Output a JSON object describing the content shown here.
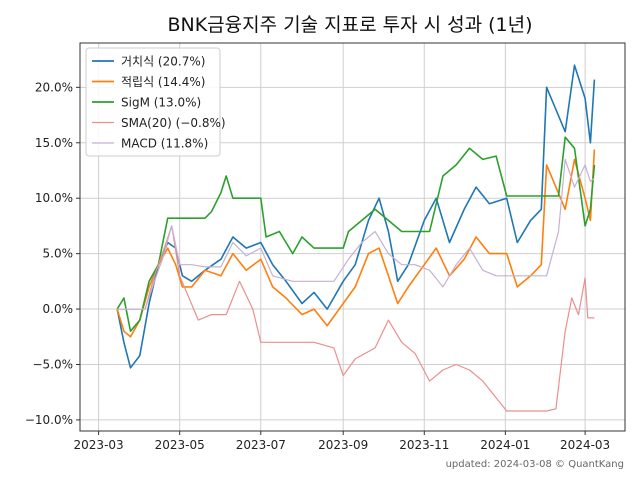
{
  "chart_data": {
    "type": "line",
    "title": "BNK금융지주 기술 지표로 투자 시 성과 (1년)",
    "xlabel": "",
    "ylabel": "",
    "x_ticks": [
      "2023-03",
      "2023-05",
      "2023-07",
      "2023-09",
      "2023-11",
      "2024-01",
      "2024-03"
    ],
    "x_range": [
      "2023-02-15",
      "2024-03-31"
    ],
    "y_ticks": [
      -10.0,
      -5.0,
      0.0,
      5.0,
      10.0,
      15.0,
      20.0
    ],
    "y_tick_labels": [
      "−10.0%",
      "−5.0%",
      "0.0%",
      "5.0%",
      "10.0%",
      "15.0%",
      "20.0%"
    ],
    "ylim": [
      -11,
      24
    ],
    "grid": true,
    "legend_position": "top-left",
    "series": [
      {
        "name": "거치식 (20.7%)",
        "color": "#1f77b4",
        "points": [
          [
            "2023-03-15",
            0.0
          ],
          [
            "2023-03-20",
            -3.0
          ],
          [
            "2023-03-25",
            -5.3
          ],
          [
            "2023-04-01",
            -4.2
          ],
          [
            "2023-04-08",
            0.5
          ],
          [
            "2023-04-15",
            4.0
          ],
          [
            "2023-04-22",
            6.0
          ],
          [
            "2023-04-28",
            5.5
          ],
          [
            "2023-05-03",
            3.0
          ],
          [
            "2023-05-10",
            2.5
          ],
          [
            "2023-05-20",
            3.5
          ],
          [
            "2023-06-01",
            4.5
          ],
          [
            "2023-06-10",
            6.5
          ],
          [
            "2023-06-20",
            5.5
          ],
          [
            "2023-07-01",
            6.0
          ],
          [
            "2023-07-10",
            4.0
          ],
          [
            "2023-07-20",
            2.5
          ],
          [
            "2023-08-01",
            0.5
          ],
          [
            "2023-08-10",
            1.5
          ],
          [
            "2023-08-20",
            0.0
          ],
          [
            "2023-09-01",
            2.5
          ],
          [
            "2023-09-10",
            4.0
          ],
          [
            "2023-09-20",
            8.0
          ],
          [
            "2023-09-28",
            10.0
          ],
          [
            "2023-10-05",
            7.0
          ],
          [
            "2023-10-12",
            2.5
          ],
          [
            "2023-10-20",
            4.0
          ],
          [
            "2023-11-01",
            8.0
          ],
          [
            "2023-11-10",
            10.0
          ],
          [
            "2023-11-20",
            6.0
          ],
          [
            "2023-12-01",
            9.0
          ],
          [
            "2023-12-10",
            11.0
          ],
          [
            "2023-12-20",
            9.5
          ],
          [
            "2024-01-02",
            10.0
          ],
          [
            "2024-01-10",
            6.0
          ],
          [
            "2024-01-20",
            8.0
          ],
          [
            "2024-01-28",
            9.0
          ],
          [
            "2024-02-01",
            20.0
          ],
          [
            "2024-02-08",
            18.0
          ],
          [
            "2024-02-15",
            16.0
          ],
          [
            "2024-02-22",
            22.0
          ],
          [
            "2024-03-01",
            19.0
          ],
          [
            "2024-03-05",
            15.0
          ],
          [
            "2024-03-08",
            20.7
          ]
        ]
      },
      {
        "name": "적립식 (14.4%)",
        "color": "#ff7f0e",
        "points": [
          [
            "2023-03-15",
            0.0
          ],
          [
            "2023-03-20",
            -2.0
          ],
          [
            "2023-03-25",
            -2.5
          ],
          [
            "2023-04-01",
            -1.0
          ],
          [
            "2023-04-08",
            2.0
          ],
          [
            "2023-04-15",
            4.0
          ],
          [
            "2023-04-22",
            5.5
          ],
          [
            "2023-04-28",
            4.0
          ],
          [
            "2023-05-03",
            2.0
          ],
          [
            "2023-05-10",
            2.0
          ],
          [
            "2023-05-20",
            3.5
          ],
          [
            "2023-06-01",
            3.0
          ],
          [
            "2023-06-10",
            5.0
          ],
          [
            "2023-06-20",
            3.5
          ],
          [
            "2023-07-01",
            4.5
          ],
          [
            "2023-07-10",
            2.0
          ],
          [
            "2023-07-20",
            1.0
          ],
          [
            "2023-08-01",
            -0.5
          ],
          [
            "2023-08-10",
            0.0
          ],
          [
            "2023-08-20",
            -1.5
          ],
          [
            "2023-09-01",
            0.5
          ],
          [
            "2023-09-10",
            2.0
          ],
          [
            "2023-09-20",
            5.0
          ],
          [
            "2023-09-28",
            5.5
          ],
          [
            "2023-10-05",
            3.0
          ],
          [
            "2023-10-12",
            0.5
          ],
          [
            "2023-10-20",
            2.0
          ],
          [
            "2023-11-01",
            4.0
          ],
          [
            "2023-11-10",
            5.5
          ],
          [
            "2023-11-20",
            3.0
          ],
          [
            "2023-12-01",
            4.5
          ],
          [
            "2023-12-10",
            6.5
          ],
          [
            "2023-12-20",
            5.0
          ],
          [
            "2024-01-02",
            5.0
          ],
          [
            "2024-01-10",
            2.0
          ],
          [
            "2024-01-20",
            3.0
          ],
          [
            "2024-01-28",
            4.0
          ],
          [
            "2024-02-01",
            13.0
          ],
          [
            "2024-02-08",
            11.0
          ],
          [
            "2024-02-15",
            9.0
          ],
          [
            "2024-02-22",
            13.5
          ],
          [
            "2024-03-01",
            10.0
          ],
          [
            "2024-03-05",
            8.0
          ],
          [
            "2024-03-08",
            14.4
          ]
        ]
      },
      {
        "name": "SigM (13.0%)",
        "color": "#2ca02c",
        "points": [
          [
            "2023-03-15",
            0.0
          ],
          [
            "2023-03-20",
            1.0
          ],
          [
            "2023-03-25",
            -2.0
          ],
          [
            "2023-04-01",
            -1.0
          ],
          [
            "2023-04-08",
            2.5
          ],
          [
            "2023-04-15",
            4.0
          ],
          [
            "2023-04-22",
            8.2
          ],
          [
            "2023-05-01",
            8.2
          ],
          [
            "2023-05-20",
            8.2
          ],
          [
            "2023-05-25",
            8.8
          ],
          [
            "2023-06-01",
            10.5
          ],
          [
            "2023-06-05",
            12.0
          ],
          [
            "2023-06-10",
            10.0
          ],
          [
            "2023-06-20",
            10.0
          ],
          [
            "2023-07-01",
            10.0
          ],
          [
            "2023-07-05",
            6.5
          ],
          [
            "2023-07-15",
            7.0
          ],
          [
            "2023-07-25",
            5.0
          ],
          [
            "2023-08-01",
            6.5
          ],
          [
            "2023-08-10",
            5.5
          ],
          [
            "2023-08-20",
            5.5
          ],
          [
            "2023-09-01",
            5.5
          ],
          [
            "2023-09-05",
            7.0
          ],
          [
            "2023-09-15",
            8.0
          ],
          [
            "2023-09-25",
            9.0
          ],
          [
            "2023-10-05",
            8.0
          ],
          [
            "2023-10-15",
            7.0
          ],
          [
            "2023-10-25",
            7.0
          ],
          [
            "2023-11-05",
            7.0
          ],
          [
            "2023-11-15",
            12.0
          ],
          [
            "2023-11-25",
            13.0
          ],
          [
            "2023-12-05",
            14.5
          ],
          [
            "2023-12-15",
            13.5
          ],
          [
            "2023-12-25",
            13.8
          ],
          [
            "2024-01-02",
            10.2
          ],
          [
            "2024-01-15",
            10.2
          ],
          [
            "2024-02-01",
            10.2
          ],
          [
            "2024-02-10",
            10.2
          ],
          [
            "2024-02-15",
            15.5
          ],
          [
            "2024-02-22",
            14.5
          ],
          [
            "2024-03-01",
            7.5
          ],
          [
            "2024-03-05",
            9.0
          ],
          [
            "2024-03-08",
            13.0
          ]
        ]
      },
      {
        "name": "SMA(20) (−0.8%)",
        "color": "#e8908f",
        "points": [
          [
            "2023-03-15",
            0.0
          ],
          [
            "2023-03-25",
            0.0
          ],
          [
            "2023-04-05",
            0.0
          ],
          [
            "2023-04-12",
            3.0
          ],
          [
            "2023-04-18",
            5.0
          ],
          [
            "2023-04-25",
            7.5
          ],
          [
            "2023-05-01",
            3.0
          ],
          [
            "2023-05-15",
            -1.0
          ],
          [
            "2023-05-25",
            -0.5
          ],
          [
            "2023-06-05",
            -0.5
          ],
          [
            "2023-06-15",
            2.5
          ],
          [
            "2023-06-25",
            0.0
          ],
          [
            "2023-07-01",
            -3.0
          ],
          [
            "2023-07-20",
            -3.0
          ],
          [
            "2023-08-10",
            -3.0
          ],
          [
            "2023-08-25",
            -3.5
          ],
          [
            "2023-09-01",
            -6.0
          ],
          [
            "2023-09-10",
            -4.5
          ],
          [
            "2023-09-25",
            -3.5
          ],
          [
            "2023-10-05",
            -1.0
          ],
          [
            "2023-10-15",
            -3.0
          ],
          [
            "2023-10-25",
            -4.0
          ],
          [
            "2023-11-05",
            -6.5
          ],
          [
            "2023-11-15",
            -5.5
          ],
          [
            "2023-11-25",
            -5.0
          ],
          [
            "2023-12-05",
            -5.5
          ],
          [
            "2023-12-15",
            -6.5
          ],
          [
            "2023-12-25",
            -8.0
          ],
          [
            "2024-01-02",
            -9.2
          ],
          [
            "2024-01-15",
            -9.2
          ],
          [
            "2024-02-01",
            -9.2
          ],
          [
            "2024-02-08",
            -9.0
          ],
          [
            "2024-02-15",
            -2.0
          ],
          [
            "2024-02-20",
            1.0
          ],
          [
            "2024-02-25",
            -0.5
          ],
          [
            "2024-03-01",
            2.8
          ],
          [
            "2024-03-03",
            -0.8
          ],
          [
            "2024-03-08",
            -0.8
          ]
        ]
      },
      {
        "name": "MACD (11.8%)",
        "color": "#c5b0d5",
        "points": [
          [
            "2023-03-15",
            0.0
          ],
          [
            "2023-03-25",
            0.0
          ],
          [
            "2023-04-05",
            0.0
          ],
          [
            "2023-04-12",
            2.5
          ],
          [
            "2023-04-18",
            4.5
          ],
          [
            "2023-04-25",
            7.5
          ],
          [
            "2023-05-01",
            4.0
          ],
          [
            "2023-05-10",
            4.0
          ],
          [
            "2023-05-20",
            3.8
          ],
          [
            "2023-06-01",
            3.8
          ],
          [
            "2023-06-10",
            6.0
          ],
          [
            "2023-06-20",
            4.8
          ],
          [
            "2023-07-01",
            5.5
          ],
          [
            "2023-07-10",
            3.0
          ],
          [
            "2023-07-25",
            2.5
          ],
          [
            "2023-08-10",
            2.5
          ],
          [
            "2023-08-25",
            2.5
          ],
          [
            "2023-09-05",
            4.5
          ],
          [
            "2023-09-15",
            6.0
          ],
          [
            "2023-09-25",
            7.0
          ],
          [
            "2023-10-05",
            5.0
          ],
          [
            "2023-10-15",
            4.0
          ],
          [
            "2023-10-25",
            4.0
          ],
          [
            "2023-11-05",
            3.5
          ],
          [
            "2023-11-15",
            2.0
          ],
          [
            "2023-11-25",
            4.0
          ],
          [
            "2023-12-05",
            5.5
          ],
          [
            "2023-12-15",
            3.5
          ],
          [
            "2023-12-25",
            3.0
          ],
          [
            "2024-01-15",
            3.0
          ],
          [
            "2024-02-01",
            3.0
          ],
          [
            "2024-02-10",
            7.0
          ],
          [
            "2024-02-15",
            13.5
          ],
          [
            "2024-02-22",
            11.0
          ],
          [
            "2024-03-01",
            13.0
          ],
          [
            "2024-03-05",
            11.5
          ],
          [
            "2024-03-08",
            11.8
          ]
        ]
      }
    ],
    "footnote": "updated: 2024-03-08 © QuantKang"
  }
}
